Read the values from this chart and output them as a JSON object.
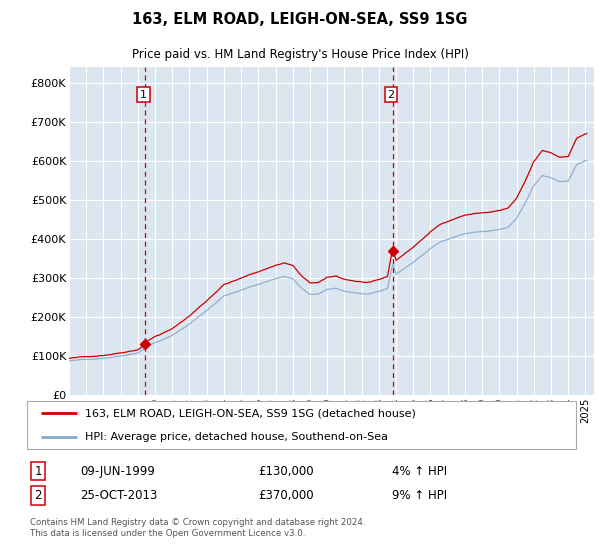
{
  "title": "163, ELM ROAD, LEIGH-ON-SEA, SS9 1SG",
  "subtitle": "Price paid vs. HM Land Registry's House Price Index (HPI)",
  "legend_line1": "163, ELM ROAD, LEIGH-ON-SEA, SS9 1SG (detached house)",
  "legend_line2": "HPI: Average price, detached house, Southend-on-Sea",
  "footnote": "Contains HM Land Registry data © Crown copyright and database right 2024.\nThis data is licensed under the Open Government Licence v3.0.",
  "marker1_date": "09-JUN-1999",
  "marker1_price": "£130,000",
  "marker1_hpi": "4% ↑ HPI",
  "marker2_date": "25-OCT-2013",
  "marker2_price": "£370,000",
  "marker2_hpi": "9% ↑ HPI",
  "xlim": [
    1995.0,
    2025.5
  ],
  "ylim": [
    0,
    840000
  ],
  "yticks": [
    0,
    100000,
    200000,
    300000,
    400000,
    500000,
    600000,
    700000,
    800000
  ],
  "ytick_labels": [
    "£0",
    "£100K",
    "£200K",
    "£300K",
    "£400K",
    "£500K",
    "£600K",
    "£700K",
    "£800K"
  ],
  "background_color": "#dce6f1",
  "plot_bg_color": "#dce6f1",
  "grid_color": "#ffffff",
  "red_line_color": "#cc0000",
  "blue_line_color": "#88aacc",
  "marker_line_color": "#cc0000",
  "marker1_x": 1999.44,
  "marker1_y": 130000,
  "marker2_x": 2013.81,
  "marker2_y": 370000
}
